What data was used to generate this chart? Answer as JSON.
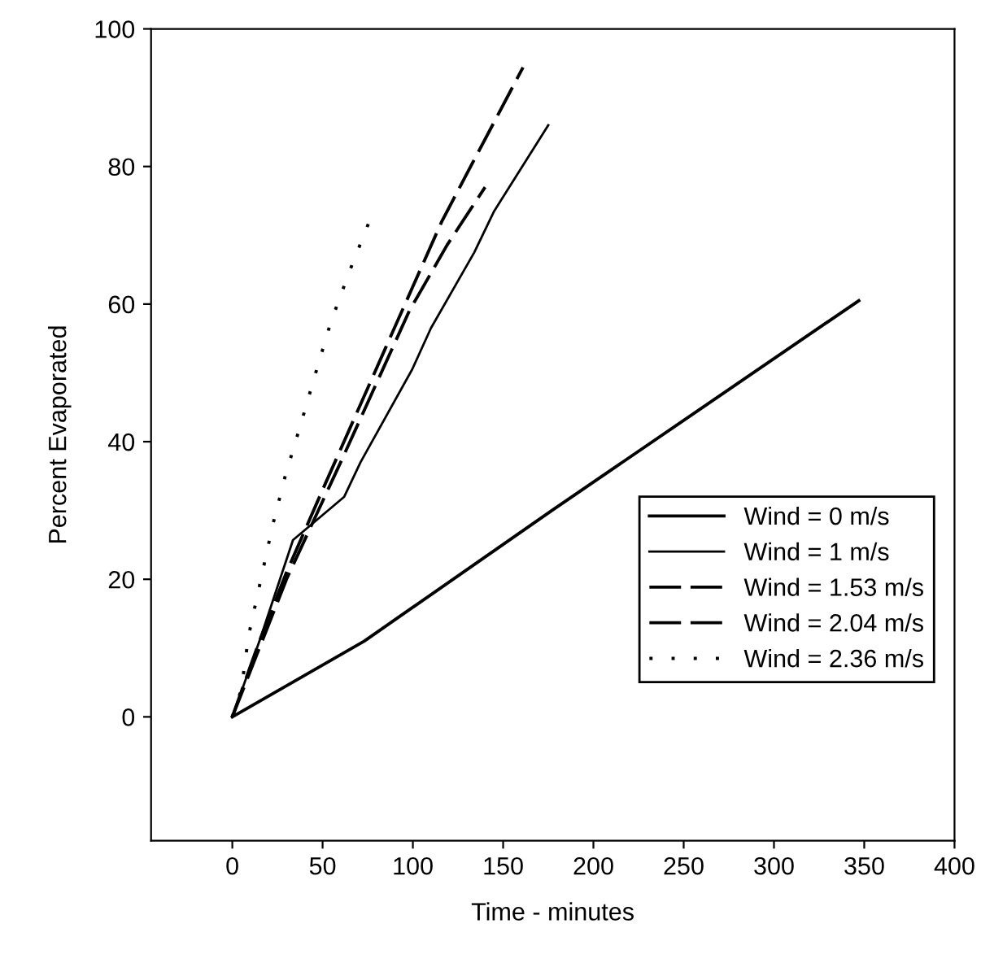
{
  "chart_data": {
    "type": "line",
    "xlabel": "Time - minutes",
    "ylabel": "Percent Evaporated",
    "xlim": [
      -45,
      400
    ],
    "xticks": [
      0,
      50,
      100,
      150,
      200,
      250,
      300,
      350,
      400
    ],
    "ylim": [
      -18,
      100
    ],
    "yticks": [
      0,
      20,
      40,
      60,
      80,
      100
    ],
    "grid": false,
    "legend": "bottom right",
    "marker": "none",
    "series": [
      {
        "name": "Wind = 0 m/s",
        "color": "#000000",
        "line_style": "solid",
        "x": [
          0,
          73,
          177,
          347
        ],
        "values": [
          0,
          11,
          30,
          60.5
        ]
      },
      {
        "name": "Wind = 1 m/s",
        "color": "#000000",
        "line_style": "solid",
        "x": [
          0,
          15,
          33.6,
          62,
          71,
          99.6,
          110,
          134,
          145,
          175
        ],
        "values": [
          0,
          11,
          25.7,
          32,
          37,
          50.5,
          56.5,
          67.5,
          73.5,
          86
        ]
      },
      {
        "name": "Wind = 1.53 m/s",
        "color": "#000000",
        "line_style": "dashed",
        "x": [
          0,
          30,
          60,
          98,
          119,
          127,
          140
        ],
        "values": [
          0,
          20,
          37,
          59,
          68.6,
          71.8,
          77
        ]
      },
      {
        "name": "Wind = 2.04 m/s",
        "color": "#000000",
        "line_style": "dashed",
        "x": [
          0,
          15,
          30,
          50,
          85,
          116,
          130,
          161
        ],
        "values": [
          0,
          11,
          21,
          33,
          53.7,
          72,
          79,
          94.4
        ]
      },
      {
        "name": "Wind = 2.36 m/s",
        "color": "#000000",
        "line_style": "dotted",
        "x": [
          0,
          5,
          9,
          15.6,
          22.2,
          29.4,
          38.1,
          45.6,
          54.6,
          65.1,
          75.7
        ],
        "values": [
          0,
          4,
          11.8,
          19.7,
          27.7,
          35.1,
          42.7,
          49.5,
          57.4,
          64.9,
          71.9
        ]
      }
    ]
  }
}
